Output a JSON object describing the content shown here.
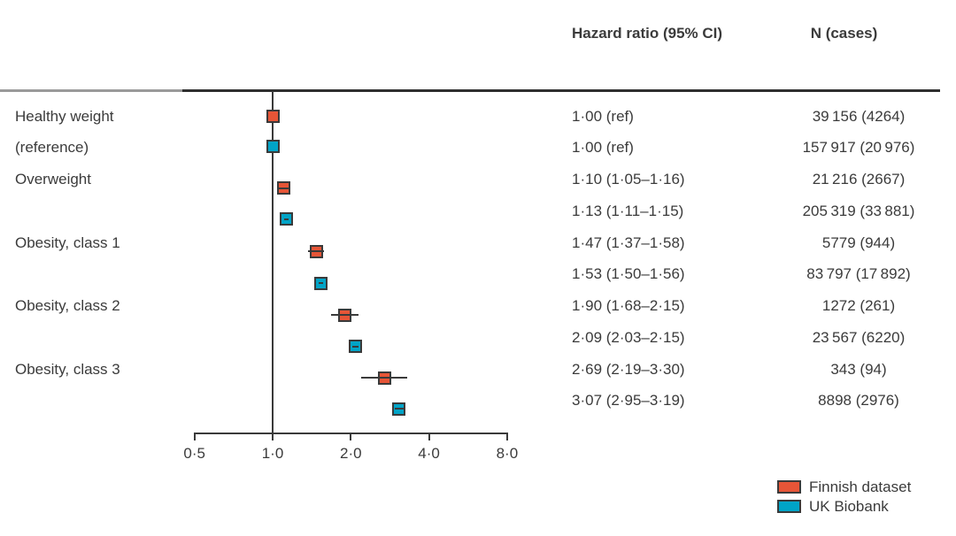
{
  "figure": {
    "col_hazard_header": "Hazard ratio (95% CI)",
    "col_n_header": "N (cases)"
  },
  "chart_data": {
    "type": "forest",
    "x_scale": "log2",
    "x_axis_ticks": [
      {
        "label": "0·5",
        "value": 0.5
      },
      {
        "label": "1·0",
        "value": 1.0
      },
      {
        "label": "2·0",
        "value": 2.0
      },
      {
        "label": "4·0",
        "value": 4.0
      },
      {
        "label": "8·0",
        "value": 8.0
      }
    ],
    "x_range": [
      0.5,
      8.0
    ],
    "reference_value": 1.0,
    "categories": [
      {
        "label": "Healthy weight",
        "row": 0
      },
      {
        "label": "(reference)",
        "row": 1
      },
      {
        "label": "Overweight",
        "row": 2
      },
      {
        "label": "Obesity, class 1",
        "row": 4
      },
      {
        "label": "Obesity, class 2",
        "row": 6
      },
      {
        "label": "Obesity, class 3",
        "row": 8
      }
    ],
    "rows": [
      {
        "dataset": "Finnish dataset",
        "hr": 1.0,
        "ci_low": null,
        "ci_high": null,
        "hr_text": "1·00 (ref)",
        "n_text": "39 156 (4264)"
      },
      {
        "dataset": "UK Biobank",
        "hr": 1.0,
        "ci_low": null,
        "ci_high": null,
        "hr_text": "1·00 (ref)",
        "n_text": "157 917 (20 976)"
      },
      {
        "dataset": "Finnish dataset",
        "hr": 1.1,
        "ci_low": 1.05,
        "ci_high": 1.16,
        "hr_text": "1·10 (1·05–1·16)",
        "n_text": "21 216 (2667)"
      },
      {
        "dataset": "UK Biobank",
        "hr": 1.13,
        "ci_low": 1.11,
        "ci_high": 1.15,
        "hr_text": "1·13 (1·11–1·15)",
        "n_text": "205 319 (33 881)"
      },
      {
        "dataset": "Finnish dataset",
        "hr": 1.47,
        "ci_low": 1.37,
        "ci_high": 1.58,
        "hr_text": "1·47 (1·37–1·58)",
        "n_text": "5779 (944)"
      },
      {
        "dataset": "UK Biobank",
        "hr": 1.53,
        "ci_low": 1.5,
        "ci_high": 1.56,
        "hr_text": "1·53 (1·50–1·56)",
        "n_text": "83 797 (17 892)"
      },
      {
        "dataset": "Finnish dataset",
        "hr": 1.9,
        "ci_low": 1.68,
        "ci_high": 2.15,
        "hr_text": "1·90 (1·68–2·15)",
        "n_text": "1272 (261)"
      },
      {
        "dataset": "UK Biobank",
        "hr": 2.09,
        "ci_low": 2.03,
        "ci_high": 2.15,
        "hr_text": "2·09 (2·03–2·15)",
        "n_text": "23 567 (6220)"
      },
      {
        "dataset": "Finnish dataset",
        "hr": 2.69,
        "ci_low": 2.19,
        "ci_high": 3.3,
        "hr_text": "2·69 (2·19–3·30)",
        "n_text": "343 (94)"
      },
      {
        "dataset": "UK Biobank",
        "hr": 3.07,
        "ci_low": 2.95,
        "ci_high": 3.19,
        "hr_text": "3·07 (2·95–3·19)",
        "n_text": "8898 (2976)"
      }
    ],
    "legend": [
      {
        "label": "Finnish dataset",
        "color": "#e65537"
      },
      {
        "label": "UK Biobank",
        "color": "#00a4c7"
      }
    ],
    "colors": {
      "marker_border": "#3a3a3a",
      "line": "#3a3a3a",
      "text": "#3b3b3b"
    }
  }
}
